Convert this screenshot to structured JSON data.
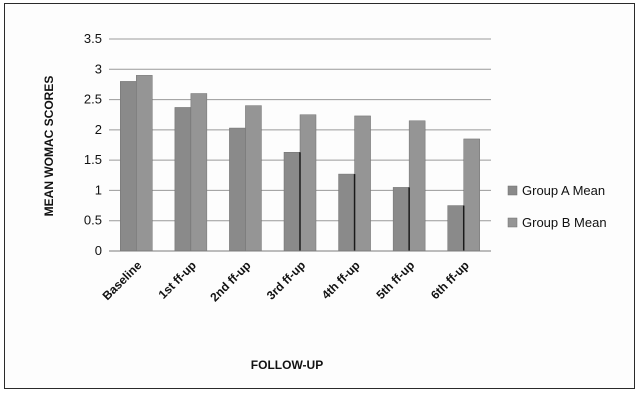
{
  "chart_data": {
    "type": "bar",
    "title": "",
    "xlabel": "FOLLOW-UP",
    "ylabel": "MEAN WOMAC SCORES",
    "ylim": [
      0,
      3.5
    ],
    "yticks": [
      "0",
      "0.5",
      "1",
      "1.5",
      "2",
      "2.5",
      "3",
      "3.5"
    ],
    "grid": true,
    "legend_position": "right",
    "categories": [
      "Baseline",
      "1st ff-up",
      "2nd ff-up",
      "3rd ff-up",
      "4th ff-up",
      "5th ff-up",
      "6th ff-up"
    ],
    "series": [
      {
        "name": "Group A Mean",
        "color": "#8a8a8a",
        "values": [
          2.8,
          2.37,
          2.03,
          1.63,
          1.27,
          1.05,
          0.75
        ]
      },
      {
        "name": "Group B Mean",
        "color": "#959595",
        "values": [
          2.9,
          2.6,
          2.4,
          2.25,
          2.23,
          2.15,
          1.85
        ]
      }
    ]
  }
}
